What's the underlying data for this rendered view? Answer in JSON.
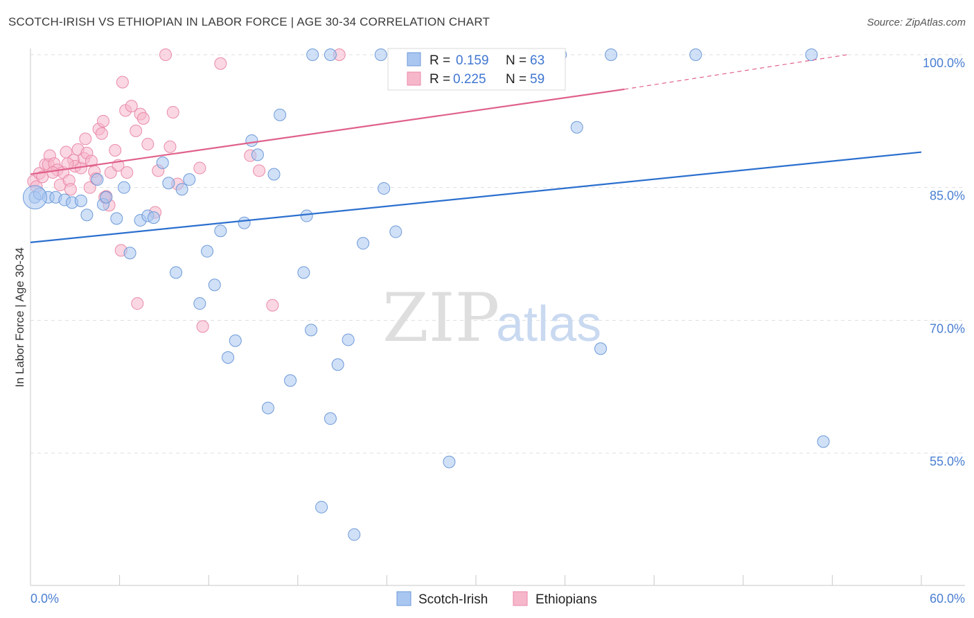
{
  "title": "SCOTCH-IRISH VS ETHIOPIAN IN LABOR FORCE | AGE 30-34 CORRELATION CHART",
  "source": "Source: ZipAtlas.com",
  "watermark": {
    "zip": "ZIP",
    "atlas": "atlas"
  },
  "legend": {
    "rows": [
      {
        "r_label": "R = ",
        "r_value": "0.159",
        "n_label": "N = ",
        "n_value": "63"
      },
      {
        "r_label": "R = ",
        "r_value": "0.225",
        "n_label": "N = ",
        "n_value": "59"
      }
    ]
  },
  "bottom_legend": [
    "Scotch-Irish",
    "Ethiopians"
  ],
  "colors": {
    "blue_fill": "#a9c6f0",
    "blue_stroke": "#6d9ad8",
    "blue_line": "#2b6fce",
    "pink_fill": "#f6b7cb",
    "pink_stroke": "#ea8aa8",
    "pink_line": "#e0608a",
    "tick_text": "#4a7fd1",
    "grid": "#dddddd"
  },
  "chart_data": {
    "type": "scatter",
    "title": "SCOTCH-IRISH VS ETHIOPIAN IN LABOR FORCE | AGE 30-34 CORRELATION CHART",
    "xlabel": "",
    "ylabel": "In Labor Force | Age 30-34",
    "xlim": [
      0,
      60
    ],
    "ylim": [
      40,
      101.5
    ],
    "x_tick_labels": [
      "0.0%",
      "60.0%"
    ],
    "y_ticks": [
      55,
      70,
      85,
      100
    ],
    "y_tick_labels": [
      "55.0%",
      "70.0%",
      "85.0%",
      "100.0%"
    ],
    "grid": true,
    "legend_position": "top-center",
    "series": [
      {
        "name": "Scotch-Irish",
        "trend": {
          "x": [
            0,
            60
          ],
          "y": [
            78.8,
            89.0
          ]
        },
        "points": [
          [
            0.3,
            83.9
          ],
          [
            0.6,
            84.3
          ],
          [
            1.2,
            83.9
          ],
          [
            1.7,
            83.9
          ],
          [
            2.3,
            83.6
          ],
          [
            2.8,
            83.3
          ],
          [
            3.4,
            83.5
          ],
          [
            3.8,
            81.9
          ],
          [
            4.5,
            85.9
          ],
          [
            4.9,
            83.1
          ],
          [
            5.1,
            83.9
          ],
          [
            5.8,
            81.5
          ],
          [
            6.3,
            85.0
          ],
          [
            6.7,
            77.6
          ],
          [
            7.4,
            81.3
          ],
          [
            7.9,
            81.8
          ],
          [
            8.3,
            81.6
          ],
          [
            8.9,
            87.8
          ],
          [
            9.3,
            85.5
          ],
          [
            9.8,
            75.4
          ],
          [
            10.2,
            84.8
          ],
          [
            10.7,
            85.9
          ],
          [
            11.4,
            71.9
          ],
          [
            11.9,
            77.8
          ],
          [
            12.4,
            74.0
          ],
          [
            12.8,
            80.1
          ],
          [
            13.8,
            67.7
          ],
          [
            13.3,
            65.8
          ],
          [
            14.4,
            81.0
          ],
          [
            14.9,
            90.3
          ],
          [
            15.3,
            88.7
          ],
          [
            16.0,
            60.1
          ],
          [
            16.4,
            86.5
          ],
          [
            16.8,
            93.2
          ],
          [
            17.5,
            63.2
          ],
          [
            18.4,
            75.4
          ],
          [
            18.6,
            81.8
          ],
          [
            19.0,
            100.0
          ],
          [
            18.9,
            68.9
          ],
          [
            19.6,
            48.9
          ],
          [
            20.2,
            58.9
          ],
          [
            20.7,
            65.0
          ],
          [
            21.4,
            67.8
          ],
          [
            21.8,
            45.8
          ],
          [
            22.4,
            78.7
          ],
          [
            23.6,
            100.0
          ],
          [
            23.8,
            84.9
          ],
          [
            24.6,
            80.0
          ],
          [
            25.2,
            100.0
          ],
          [
            27.1,
            100.0
          ],
          [
            28.2,
            54.0
          ],
          [
            29.7,
            100.0
          ],
          [
            30.2,
            100.0
          ],
          [
            33.7,
            100.0
          ],
          [
            35.7,
            100.0
          ],
          [
            36.8,
            91.8
          ],
          [
            38.4,
            66.8
          ],
          [
            39.1,
            100.0
          ],
          [
            44.8,
            100.0
          ],
          [
            52.6,
            100.0
          ],
          [
            53.4,
            56.3
          ],
          [
            30.0,
            100.0
          ],
          [
            20.2,
            100.0
          ]
        ]
      },
      {
        "name": "Ethiopians",
        "trend": {
          "x": [
            0,
            40
          ],
          "y": [
            86.5,
            96.1
          ]
        },
        "trend_dashed": {
          "x": [
            40,
            55
          ],
          "y": [
            96.1,
            100.0
          ]
        },
        "points": [
          [
            0.2,
            85.7
          ],
          [
            0.4,
            85.1
          ],
          [
            0.6,
            86.6
          ],
          [
            0.8,
            86.2
          ],
          [
            1.0,
            87.6
          ],
          [
            1.2,
            87.6
          ],
          [
            1.3,
            88.6
          ],
          [
            1.6,
            87.7
          ],
          [
            1.8,
            87.0
          ],
          [
            2.0,
            85.3
          ],
          [
            2.2,
            86.7
          ],
          [
            2.4,
            89.0
          ],
          [
            2.6,
            85.8
          ],
          [
            2.7,
            84.8
          ],
          [
            2.9,
            88.1
          ],
          [
            3.0,
            87.4
          ],
          [
            3.2,
            89.3
          ],
          [
            3.4,
            87.2
          ],
          [
            3.6,
            88.3
          ],
          [
            3.7,
            90.5
          ],
          [
            3.8,
            88.9
          ],
          [
            4.0,
            85.0
          ],
          [
            4.1,
            88.0
          ],
          [
            4.3,
            86.8
          ],
          [
            4.4,
            86.0
          ],
          [
            4.6,
            91.6
          ],
          [
            4.8,
            91.1
          ],
          [
            4.9,
            92.5
          ],
          [
            5.1,
            84.0
          ],
          [
            5.3,
            83.0
          ],
          [
            5.4,
            86.7
          ],
          [
            5.7,
            89.2
          ],
          [
            5.9,
            87.5
          ],
          [
            6.1,
            77.9
          ],
          [
            6.2,
            96.9
          ],
          [
            6.4,
            93.7
          ],
          [
            6.5,
            86.7
          ],
          [
            6.8,
            94.2
          ],
          [
            7.1,
            91.4
          ],
          [
            7.2,
            71.9
          ],
          [
            7.4,
            93.3
          ],
          [
            7.6,
            92.8
          ],
          [
            7.9,
            89.9
          ],
          [
            8.4,
            82.2
          ],
          [
            8.6,
            86.9
          ],
          [
            9.1,
            100.0
          ],
          [
            9.4,
            89.6
          ],
          [
            9.6,
            93.5
          ],
          [
            9.9,
            85.4
          ],
          [
            11.4,
            87.2
          ],
          [
            11.6,
            69.3
          ],
          [
            12.8,
            99.0
          ],
          [
            14.8,
            88.6
          ],
          [
            15.4,
            86.9
          ],
          [
            16.3,
            71.7
          ],
          [
            20.8,
            100.0
          ],
          [
            5.0,
            83.9
          ],
          [
            2.5,
            87.7
          ],
          [
            1.5,
            86.7
          ]
        ]
      }
    ]
  }
}
